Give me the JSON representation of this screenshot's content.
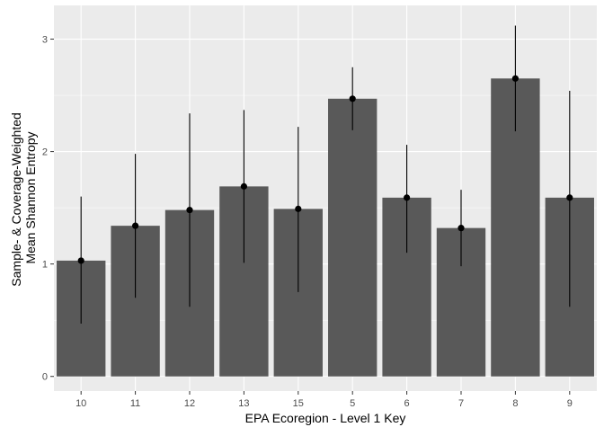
{
  "chart_data": {
    "type": "bar",
    "title": "",
    "xlabel": "EPA Ecoregion - Level 1 Key",
    "ylabel_lines": [
      "Sample- & Coverage-Weighted",
      "Mean Shannon Entropy"
    ],
    "categories": [
      "10",
      "11",
      "12",
      "13",
      "15",
      "5",
      "6",
      "7",
      "8",
      "9"
    ],
    "values": [
      1.03,
      1.34,
      1.48,
      1.69,
      1.49,
      2.47,
      1.59,
      1.32,
      2.65,
      1.59
    ],
    "error_low": [
      0.47,
      0.7,
      0.62,
      1.01,
      0.75,
      2.19,
      1.1,
      0.98,
      2.18,
      0.62
    ],
    "error_high": [
      1.6,
      1.98,
      2.34,
      2.37,
      2.22,
      2.75,
      2.06,
      1.66,
      3.12,
      2.54
    ],
    "yticks": [
      0,
      1,
      2,
      3
    ],
    "ylim": [
      -0.13,
      3.3
    ],
    "grid": true,
    "colors": {
      "panel": "#ebebeb",
      "grid_major": "#ffffff",
      "bar": "#595959",
      "error": "#000000",
      "point": "#000000"
    }
  }
}
